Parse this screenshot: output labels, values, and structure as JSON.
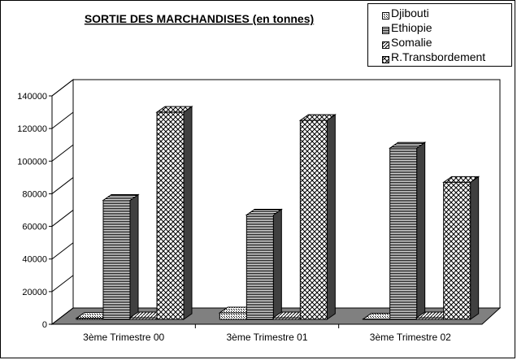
{
  "chart_data": {
    "type": "bar",
    "title": "SORTIE DES MARCHANDISES (en tonnes)",
    "xlabel": "",
    "ylabel": "",
    "ylim": [
      0,
      140000
    ],
    "yticks": [
      "0",
      "20000",
      "40000",
      "60000",
      "80000",
      "100000",
      "120000",
      "140000"
    ],
    "categories": [
      "3ème Trimestre 00",
      "3ème Trimestre 01",
      "3ème Trimestre 02"
    ],
    "series": [
      {
        "name": "Djibouti",
        "values": [
          700,
          4000,
          200
        ]
      },
      {
        "name": "Ethiopie",
        "values": [
          73000,
          64000,
          105000
        ]
      },
      {
        "name": "Somalie",
        "values": [
          1000,
          1000,
          1000
        ]
      },
      {
        "name": "R.Transbordement",
        "values": [
          127000,
          122000,
          84000
        ]
      }
    ],
    "legend_position": "top-right",
    "grid": false,
    "three_d": true
  }
}
